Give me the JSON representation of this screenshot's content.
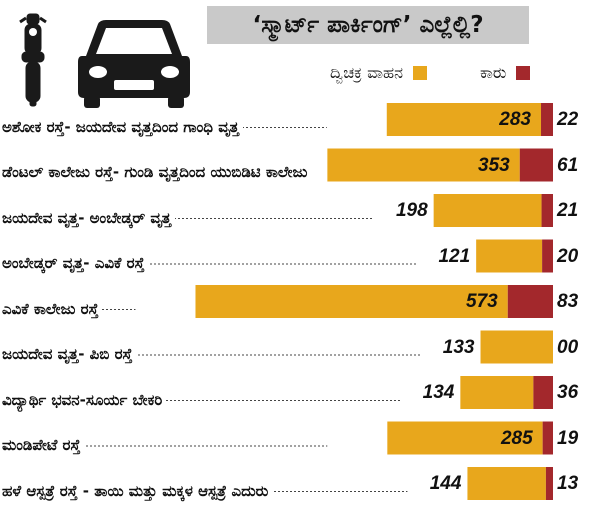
{
  "title": "‘ಸ್ಮಾರ್ಟ್ ಪಾರ್ಕಿಂಗ್’ ಎಲ್ಲೆಲ್ಲಿ?",
  "legend": [
    {
      "label": "ದ್ವಿಚಕ್ರ ವಾಹನ",
      "color": "#e8a71c"
    },
    {
      "label": "ಕಾರು",
      "color": "#a3282c"
    }
  ],
  "icons": [
    "motorcycle-icon",
    "car-icon"
  ],
  "chart_data": {
    "type": "bar",
    "orientation": "horizontal",
    "stacked": true,
    "categories": [
      "ಅಶೋಕ ರಸ್ತೆ- ಜಯದೇವ ವೃತ್ತದಿಂದ ಗಾಂಧಿ ವೃತ್ತ",
      "ಡೆಂಟಲ್ ಕಾಲೇಜು ರಸ್ತೆ- ಗುಂಡಿ ವೃತ್ತದಿಂದ ಯುಬಿಡಿಟಿ ಕಾಲೇಜು",
      "ಜಯದೇವ ವೃತ್ತ- ಅಂಬೇಡ್ಕರ್ ವೃತ್ತ",
      "ಅಂಬೇಡ್ಕರ್ ವೃತ್ತ- ಎವಿಕೆ ರಸ್ತೆ",
      "ಎವಿಕೆ ಕಾಲೇಜು ರಸ್ತೆ",
      "ಜಯದೇವ ವೃತ್ತ- ಪಿಬಿ ರಸ್ತೆ",
      "ವಿದ್ಯಾರ್ಥಿ ಭವನ-ಸೂರ್ಯ ಬೇಕರಿ",
      "ಮಂಡಿಪೇಟೆ ರಸ್ತೆ",
      "ಹಳೆ ಆಸ್ಪತ್ರೆ ರಸ್ತೆ - ತಾಯಿ ಮತ್ತು ಮಕ್ಕಳ ಆಸ್ಪತ್ರೆ ಎದುರು"
    ],
    "series": [
      {
        "name": "ದ್ವಿಚಕ್ರ ವಾಹನ",
        "color": "#e8a71c",
        "values": [
          283,
          353,
          198,
          121,
          573,
          133,
          134,
          285,
          144
        ]
      },
      {
        "name": "ಕಾರು",
        "color": "#a3282c",
        "values": [
          22,
          61,
          21,
          20,
          83,
          0,
          36,
          19,
          13
        ]
      }
    ],
    "value_labels": {
      "bikes": [
        "283",
        "353",
        "198",
        "121",
        "573",
        "133",
        "134",
        "285",
        "144"
      ],
      "cars": [
        "22",
        "61",
        "21",
        "20",
        "83",
        "00",
        "36",
        "19",
        "13"
      ]
    },
    "grid": false,
    "legend_position": "top-right"
  }
}
